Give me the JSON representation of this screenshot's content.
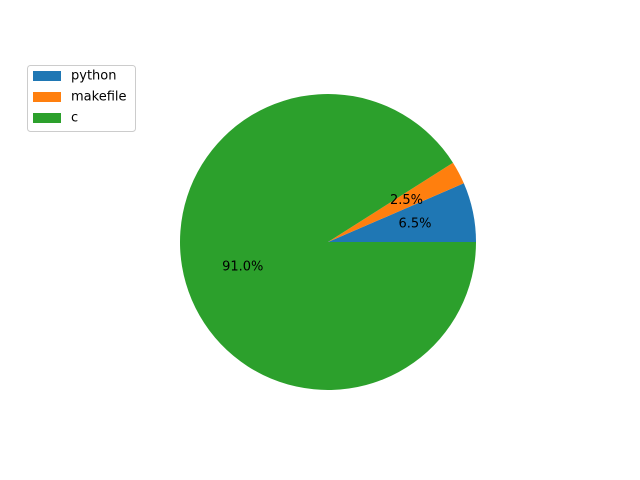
{
  "chart_data": {
    "type": "pie",
    "title": "",
    "slices": [
      {
        "label": "python",
        "percent": 6.5,
        "color": "#1f77b4"
      },
      {
        "label": "makefile",
        "percent": 2.5,
        "color": "#ff7f0e"
      },
      {
        "label": "c",
        "percent": 91.0,
        "color": "#2ca02c"
      }
    ],
    "percent_labels": [
      "6.5%",
      "2.5%",
      "91.0%"
    ],
    "start_angle_deg": 0,
    "direction": "counterclockwise",
    "legend": {
      "position": "upper-left"
    }
  }
}
